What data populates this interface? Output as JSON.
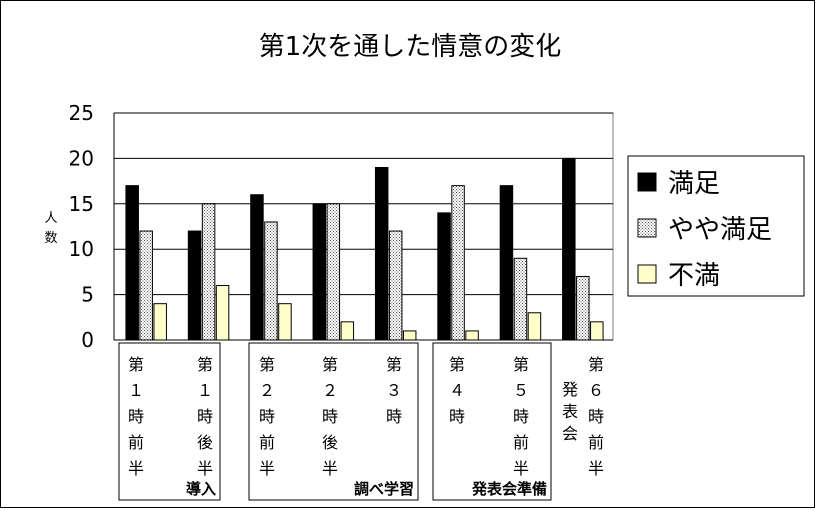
{
  "chart_data": {
    "type": "bar",
    "title": "第1次を通した情意の変化",
    "ylabel": "人数",
    "ylim": [
      0,
      25
    ],
    "yticks": [
      0,
      5,
      10,
      15,
      20,
      25
    ],
    "grid": true,
    "legend_position": "right",
    "categories": [
      "第１時前半",
      "第１時後半",
      "第２時前半",
      "第２時後半",
      "第３時",
      "第４時",
      "第５時前半",
      "第６時前半"
    ],
    "category_extra_labels": {
      "7": "発表会"
    },
    "category_groups": [
      {
        "label": "導入",
        "from": 0,
        "to": 1
      },
      {
        "label": "調べ学習",
        "from": 2,
        "to": 4
      },
      {
        "label": "発表会準備",
        "from": 5,
        "to": 6
      }
    ],
    "series": [
      {
        "name": "満足",
        "values": [
          17,
          12,
          16,
          15,
          19,
          14,
          17,
          20
        ],
        "color": "#000000",
        "pattern": "solid"
      },
      {
        "name": "やや満足",
        "values": [
          12,
          15,
          13,
          15,
          12,
          17,
          9,
          7
        ],
        "color": "#c8c8c8",
        "pattern": "dots"
      },
      {
        "name": "不満",
        "values": [
          4,
          6,
          4,
          2,
          1,
          1,
          3,
          2
        ],
        "color": "#ffffcc",
        "pattern": "solid"
      }
    ]
  }
}
